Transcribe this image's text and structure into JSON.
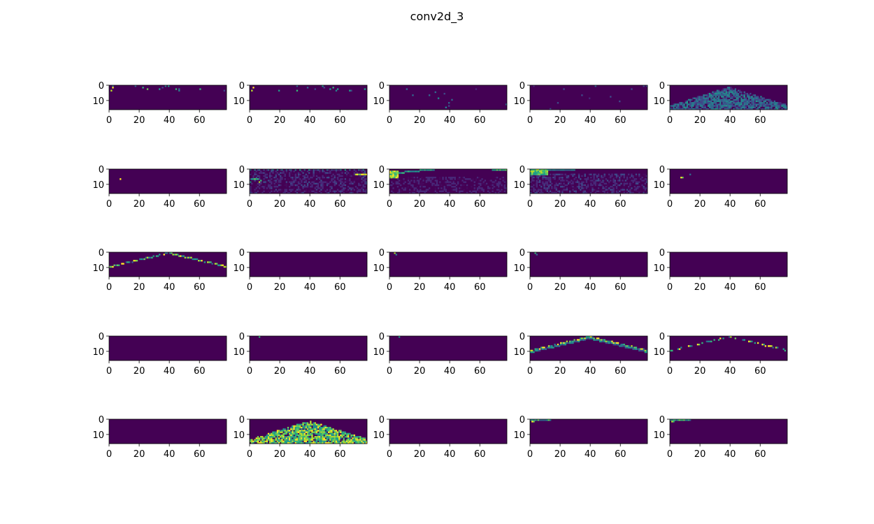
{
  "figure": {
    "title": "conv2d_3"
  },
  "chart_data": {
    "type": "heatmap",
    "title": "conv2d_3",
    "layout": {
      "rows": 5,
      "cols": 5
    },
    "colormap": "viridis",
    "image_shape": [
      16,
      78
    ],
    "xlim": [
      0,
      78
    ],
    "ylim": [
      16,
      0
    ],
    "xticks": [
      0,
      20,
      40,
      60
    ],
    "yticks": [
      0,
      10
    ],
    "background_color": "#440154",
    "palette": {
      "dark": "#440154",
      "deep_purple": "#46085c",
      "indigo": "#482878",
      "blue": "#3e4a89",
      "slate": "#31688e",
      "teal": "#26828e",
      "sea": "#1f9e89",
      "green": "#35b779",
      "lime": "#6ece58",
      "yellowgreen": "#b5de2b",
      "yellow": "#fde725"
    },
    "panels": [
      {
        "index": 1,
        "pattern": "sparse-top",
        "intensity": 0.55
      },
      {
        "index": 2,
        "pattern": "sparse-top",
        "intensity": 0.45
      },
      {
        "index": 3,
        "pattern": "sparse-scatter",
        "intensity": 0.35
      },
      {
        "index": 4,
        "pattern": "sparse-scatter",
        "intensity": 0.2
      },
      {
        "index": 5,
        "pattern": "dome",
        "intensity": 0.6
      },
      {
        "index": 6,
        "pattern": "single-dot",
        "intensity": 1.0
      },
      {
        "index": 7,
        "pattern": "texture-edges",
        "intensity": 0.5
      },
      {
        "index": 8,
        "pattern": "left-edge-bright",
        "intensity": 0.7
      },
      {
        "index": 9,
        "pattern": "left-edge-texture",
        "intensity": 0.55
      },
      {
        "index": 10,
        "pattern": "single-dot-left",
        "intensity": 0.9
      },
      {
        "index": 11,
        "pattern": "v-lines",
        "intensity": 0.7
      },
      {
        "index": 12,
        "pattern": "empty",
        "intensity": 0.0
      },
      {
        "index": 13,
        "pattern": "corner-dot",
        "intensity": 0.8
      },
      {
        "index": 14,
        "pattern": "corner-dot",
        "intensity": 0.6
      },
      {
        "index": 15,
        "pattern": "empty",
        "intensity": 0.0
      },
      {
        "index": 16,
        "pattern": "empty",
        "intensity": 0.0
      },
      {
        "index": 17,
        "pattern": "corner-dot-small",
        "intensity": 0.6
      },
      {
        "index": 18,
        "pattern": "corner-dot-small",
        "intensity": 0.5
      },
      {
        "index": 19,
        "pattern": "v-lines-strong",
        "intensity": 0.8
      },
      {
        "index": 20,
        "pattern": "v-lines-dotted",
        "intensity": 0.8
      },
      {
        "index": 21,
        "pattern": "empty",
        "intensity": 0.0
      },
      {
        "index": 22,
        "pattern": "dome-bright",
        "intensity": 0.85
      },
      {
        "index": 23,
        "pattern": "empty",
        "intensity": 0.0
      },
      {
        "index": 24,
        "pattern": "top-left-streak",
        "intensity": 0.9
      },
      {
        "index": 25,
        "pattern": "top-left-streak",
        "intensity": 0.8
      }
    ]
  }
}
